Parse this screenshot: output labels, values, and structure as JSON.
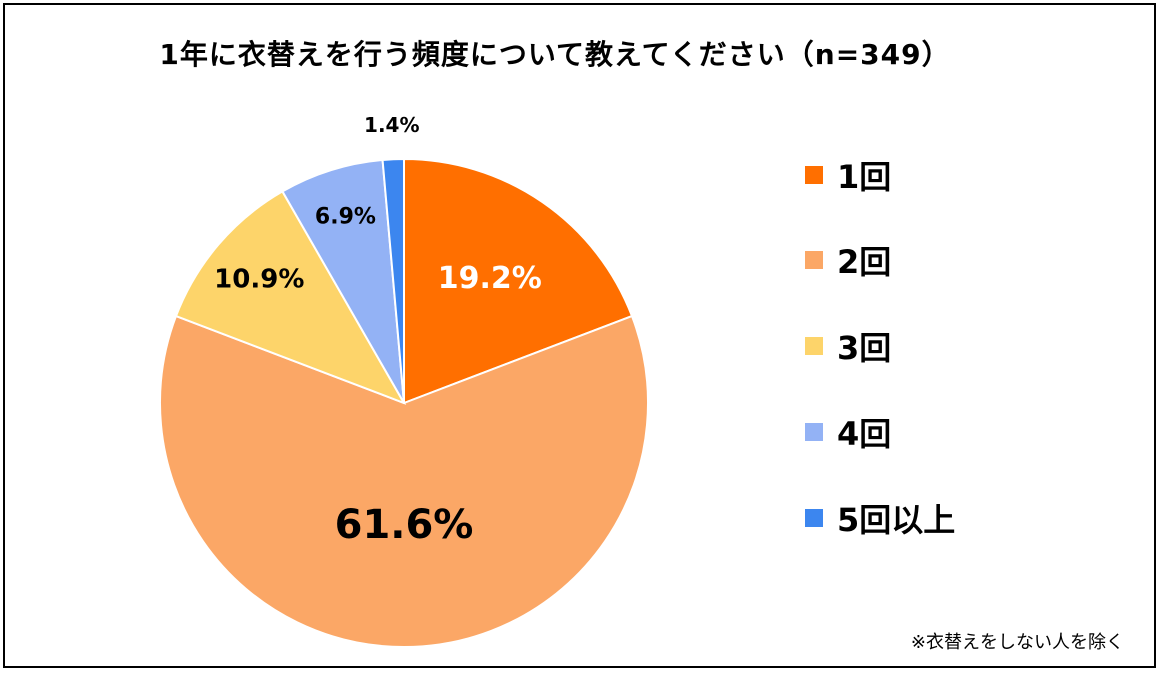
{
  "chart_data": {
    "type": "pie",
    "title": "1年に衣替えを行う頻度について教えてください（n=349）",
    "categories": [
      "1回",
      "2回",
      "3回",
      "4回",
      "5回以上"
    ],
    "values": [
      19.2,
      61.6,
      10.9,
      6.9,
      1.4
    ],
    "labels": [
      "19.2%",
      "61.6%",
      "10.9%",
      "6.9%",
      "1.4%"
    ],
    "colors": [
      "#ff6f00",
      "#fba766",
      "#fdd46a",
      "#93b2f5",
      "#3c86ef"
    ],
    "legend_position": "right",
    "footnote": "※衣替えをしない人を除く"
  }
}
